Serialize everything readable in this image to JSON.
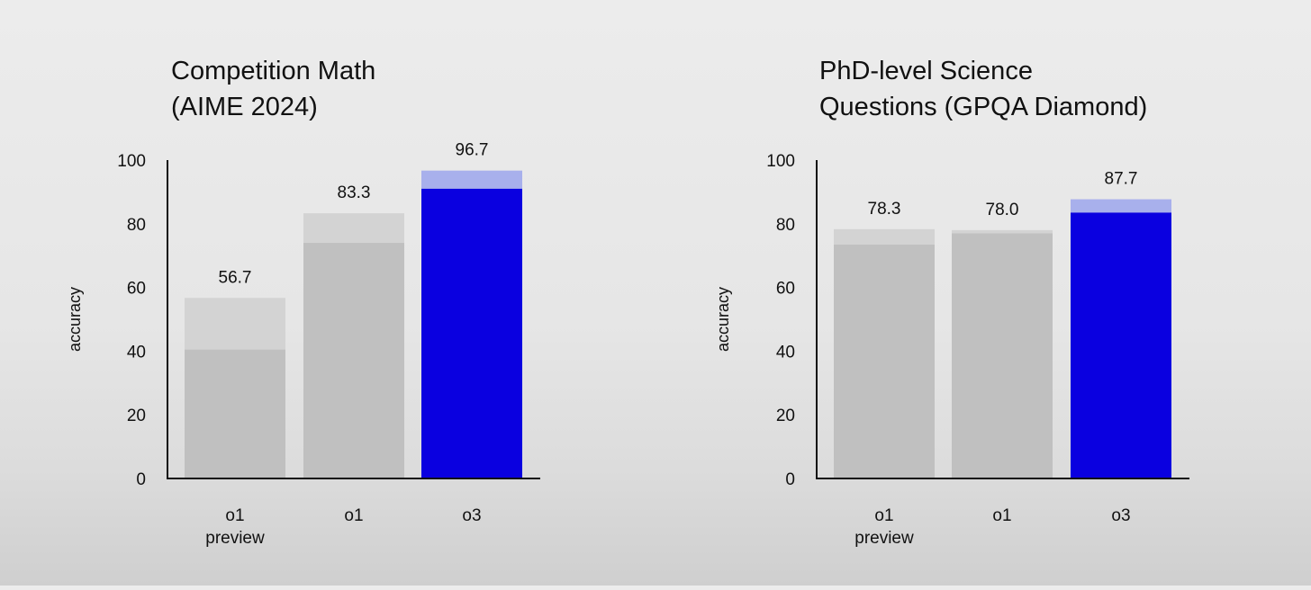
{
  "chart_data": [
    {
      "type": "bar",
      "title_lines": [
        "Competition Math",
        "(AIME 2024)"
      ],
      "ylabel": "accuracy",
      "xlabel": "",
      "ylim": [
        0,
        100
      ],
      "yticks": [
        "0",
        "20",
        "40",
        "60",
        "80",
        "100"
      ],
      "categories": [
        [
          "o1",
          "preview"
        ],
        [
          "o1"
        ],
        [
          "o3"
        ]
      ],
      "series": [
        {
          "values": [
            40.5,
            74.0,
            91.0
          ]
        },
        {
          "values": [
            56.7,
            83.3,
            96.7
          ]
        }
      ],
      "value_labels": [
        "56.7",
        "83.3",
        "96.7"
      ],
      "grid": false,
      "colors": {
        "base_gray": "#c0c0c0",
        "top_gray": "#d3d3d3",
        "base_highlight": "#0a00e0",
        "top_highlight": "#a8b0ec",
        "axis": "#111111"
      },
      "highlight_index": 2
    },
    {
      "type": "bar",
      "title_lines": [
        "PhD-level Science",
        "Questions (GPQA Diamond)"
      ],
      "ylabel": "accuracy",
      "xlabel": "",
      "ylim": [
        0,
        100
      ],
      "yticks": [
        "0",
        "20",
        "40",
        "60",
        "80",
        "100"
      ],
      "categories": [
        [
          "o1",
          "preview"
        ],
        [
          "o1"
        ],
        [
          "o3"
        ]
      ],
      "series": [
        {
          "values": [
            73.5,
            77.0,
            83.5
          ]
        },
        {
          "values": [
            78.3,
            78.0,
            87.7
          ]
        }
      ],
      "value_labels": [
        "78.3",
        "78.0",
        "87.7"
      ],
      "grid": false,
      "colors": {
        "base_gray": "#c0c0c0",
        "top_gray": "#d3d3d3",
        "base_highlight": "#0a00e0",
        "top_highlight": "#a8b0ec",
        "axis": "#111111"
      },
      "highlight_index": 2
    }
  ]
}
